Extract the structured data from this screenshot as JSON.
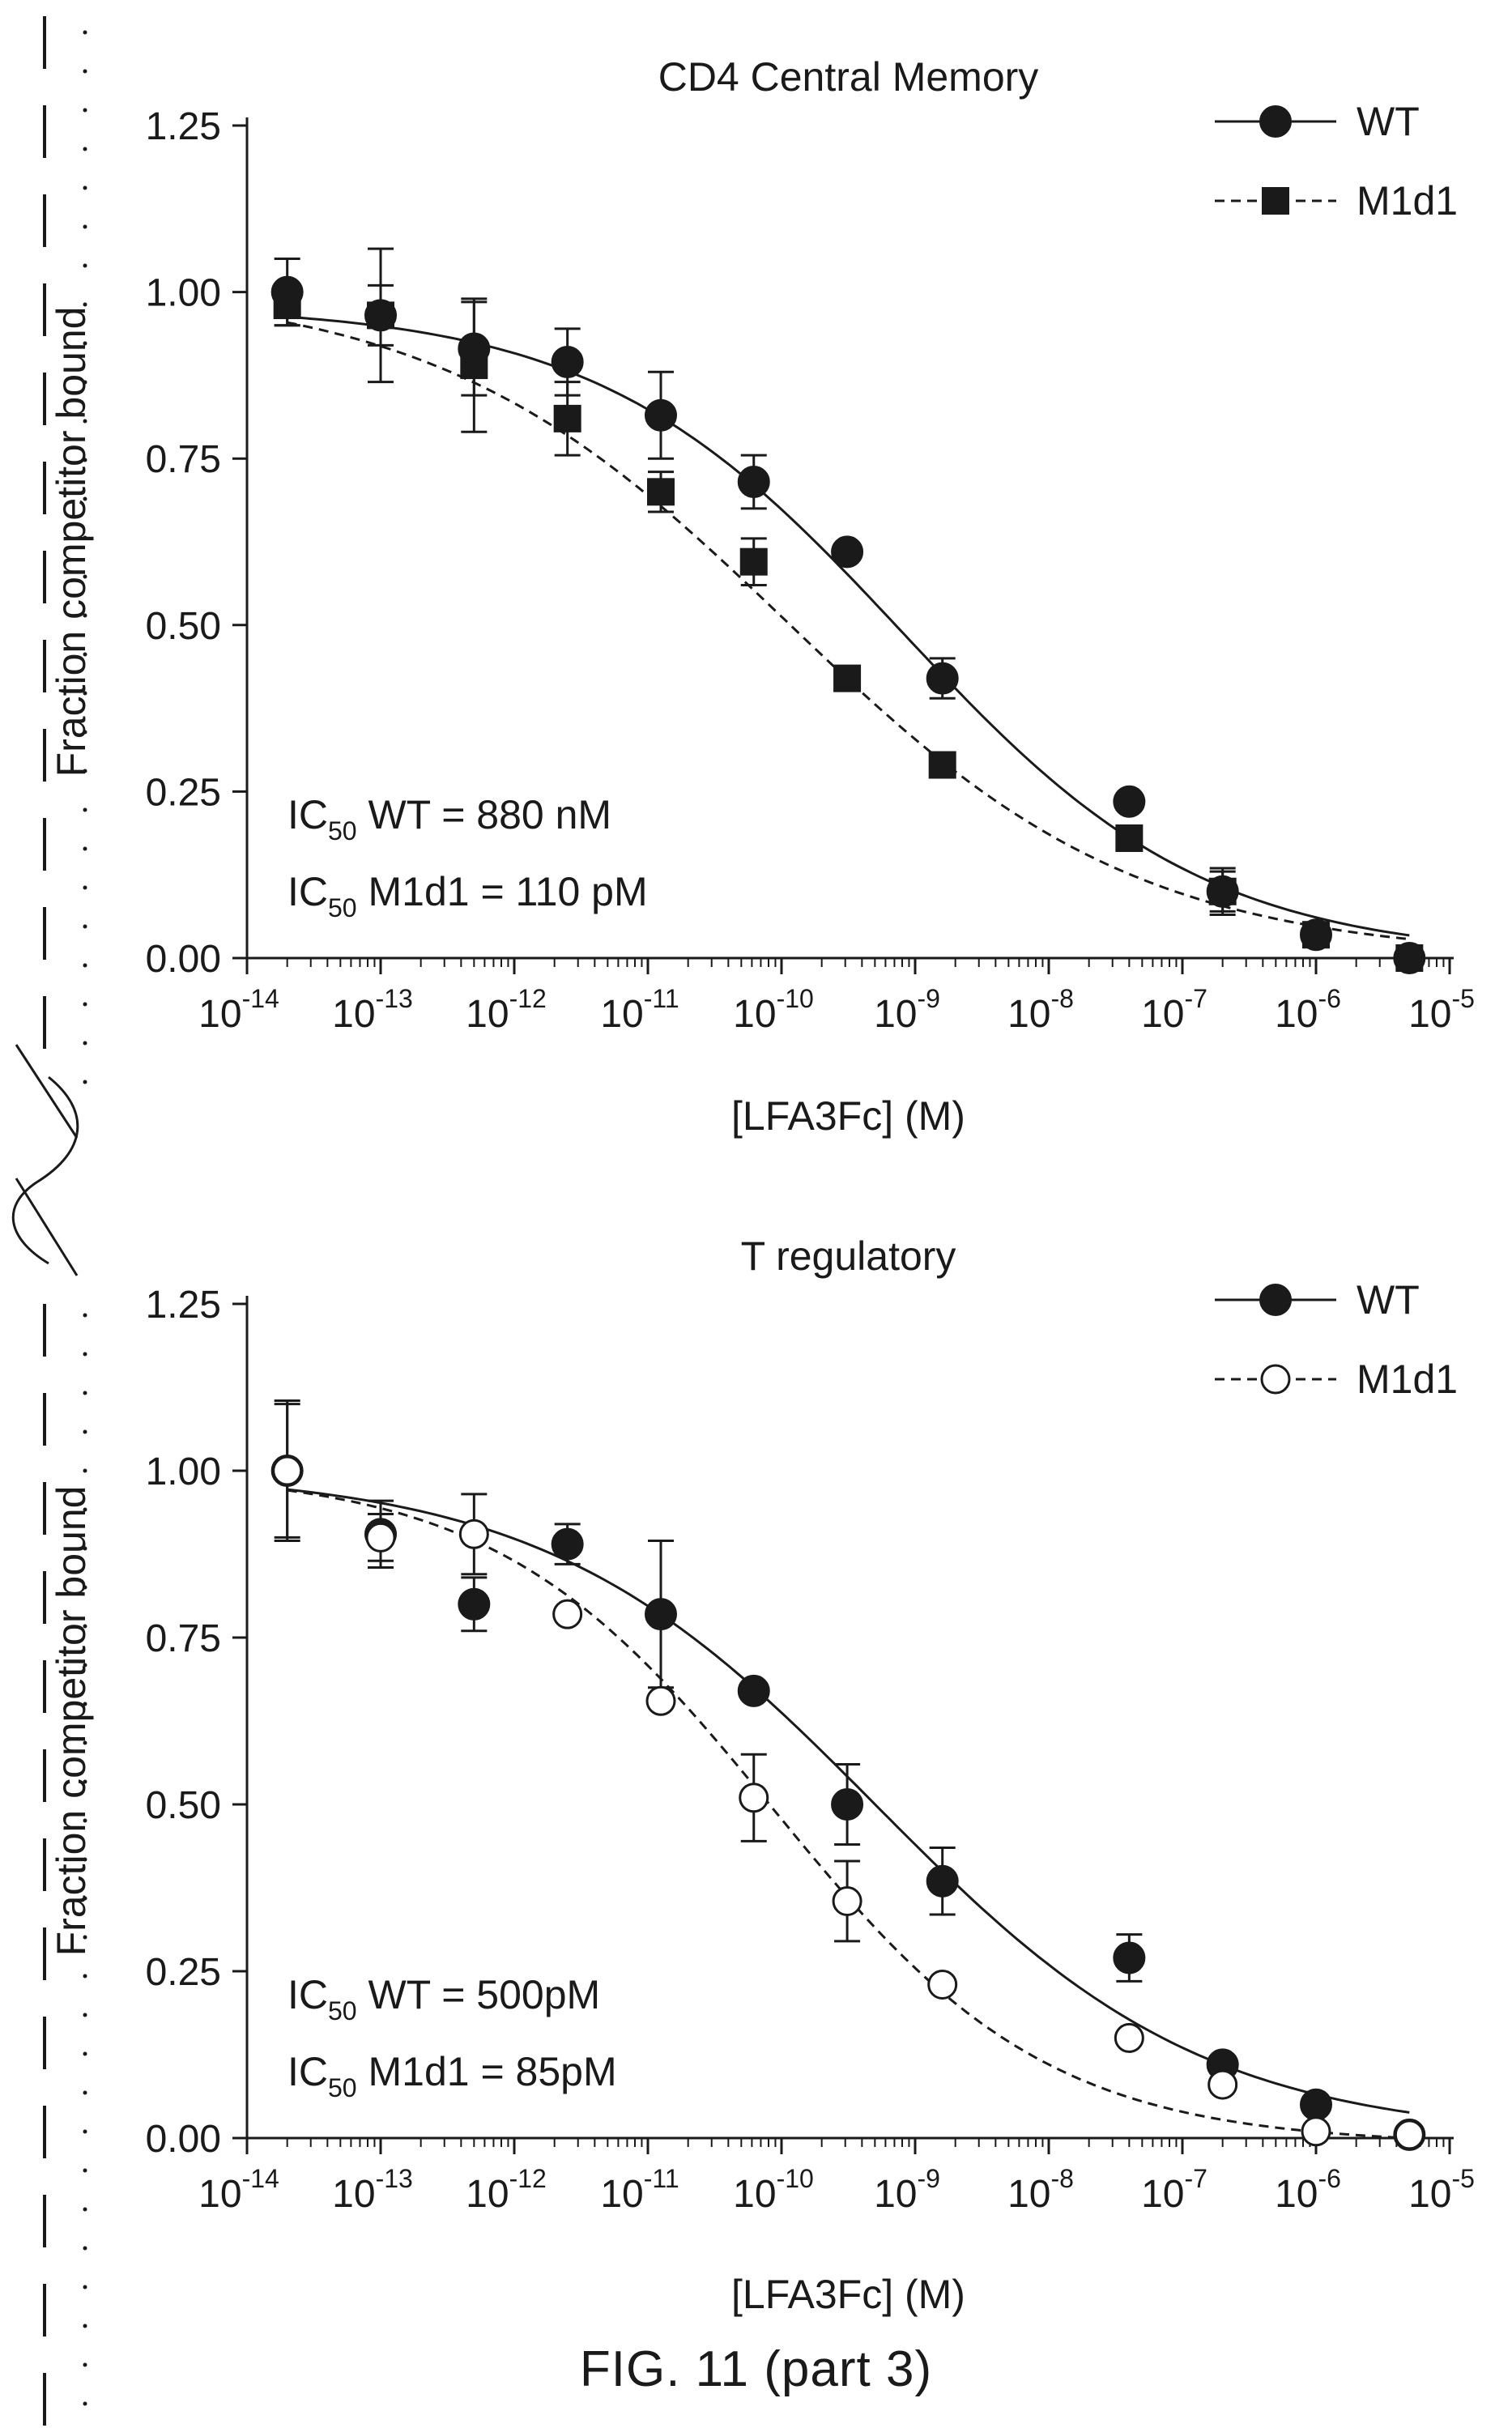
{
  "caption": "FIG. 11 (part 3)",
  "chart_data": [
    {
      "type": "scatter",
      "title": "CD4 Central Memory",
      "xlabel": "[LFA3Fc] (M)",
      "ylabel": "Fraction competitor bound",
      "xscale": "log",
      "xlim": [
        1e-14,
        1e-05
      ],
      "ylim": [
        0,
        1.25
      ],
      "x_ticks": [
        {
          "base": "10",
          "exp": "-14"
        },
        {
          "base": "10",
          "exp": "-13"
        },
        {
          "base": "10",
          "exp": "-12"
        },
        {
          "base": "10",
          "exp": "-11"
        },
        {
          "base": "10",
          "exp": "-10"
        },
        {
          "base": "10",
          "exp": "-9"
        },
        {
          "base": "10",
          "exp": "-8"
        },
        {
          "base": "10",
          "exp": "-7"
        },
        {
          "base": "10",
          "exp": "-6"
        },
        {
          "base": "10",
          "exp": "-5"
        }
      ],
      "y_ticks": [
        "0.00",
        "0.25",
        "0.50",
        "0.75",
        "1.00",
        "1.25"
      ],
      "legend_position": "top-right",
      "annotations": [
        {
          "pre": "IC",
          "sub": "50",
          "post": " WT    = 880 nM"
        },
        {
          "pre": "IC",
          "sub": "50",
          "post": " M1d1 = 110 pM"
        }
      ],
      "series": [
        {
          "name": "WT",
          "marker": "filled-circle",
          "line": "solid",
          "color": "#1a1a1a",
          "x": [
            2e-14,
            1e-13,
            5e-13,
            2.5e-12,
            1.25e-11,
            6.2e-11,
            3.1e-10,
            1.6e-09,
            4e-08,
            2e-07,
            1e-06,
            5e-06
          ],
          "y": [
            1.0,
            0.965,
            0.915,
            0.895,
            0.815,
            0.715,
            0.61,
            0.42,
            0.235,
            0.1,
            0.035,
            0.0
          ],
          "err": [
            0.05,
            0.1,
            0.07,
            0.05,
            0.065,
            0.04,
            0.0,
            0.03,
            0.0,
            0.035,
            0.0,
            0.0
          ],
          "fit": {
            "top": 0.98,
            "bottom": 0.0,
            "logIC50": -9.1,
            "hill": 0.38
          }
        },
        {
          "name": "M1d1",
          "marker": "filled-square",
          "line": "dashed",
          "color": "#1a1a1a",
          "x": [
            2e-14,
            1e-13,
            5e-13,
            2.5e-12,
            1.25e-11,
            6.2e-11,
            3.1e-10,
            1.6e-09,
            4e-08,
            2e-07,
            1e-06,
            5e-06
          ],
          "y": [
            0.98,
            0.965,
            0.89,
            0.81,
            0.7,
            0.595,
            0.42,
            0.29,
            0.18,
            0.1,
            0.035,
            0.0
          ],
          "err": [
            0.03,
            0.045,
            0.1,
            0.055,
            0.03,
            0.035,
            0.0,
            0.0,
            0.0,
            0.03,
            0.0,
            0.0
          ],
          "fit": {
            "top": 1.01,
            "bottom": 0.0,
            "logIC50": -9.96,
            "hill": 0.33
          }
        }
      ]
    },
    {
      "type": "scatter",
      "title": "T regulatory",
      "xlabel": "[LFA3Fc] (M)",
      "ylabel": "Fraction competitor bound",
      "xscale": "log",
      "xlim": [
        1e-14,
        1e-05
      ],
      "ylim": [
        0,
        1.25
      ],
      "x_ticks": [
        {
          "base": "10",
          "exp": "-14"
        },
        {
          "base": "10",
          "exp": "-13"
        },
        {
          "base": "10",
          "exp": "-12"
        },
        {
          "base": "10",
          "exp": "-11"
        },
        {
          "base": "10",
          "exp": "-10"
        },
        {
          "base": "10",
          "exp": "-9"
        },
        {
          "base": "10",
          "exp": "-8"
        },
        {
          "base": "10",
          "exp": "-7"
        },
        {
          "base": "10",
          "exp": "-6"
        },
        {
          "base": "10",
          "exp": "-5"
        }
      ],
      "y_ticks": [
        "0.00",
        "0.25",
        "0.50",
        "0.75",
        "1.00",
        "1.25"
      ],
      "legend_position": "top-right",
      "annotations": [
        {
          "pre": "IC",
          "sub": "50",
          "post": " WT    = 500pM"
        },
        {
          "pre": "IC",
          "sub": "50",
          "post": " M1d1 = 85pM"
        }
      ],
      "series": [
        {
          "name": "WT",
          "marker": "filled-circle",
          "line": "solid",
          "color": "#1a1a1a",
          "x": [
            2e-14,
            1e-13,
            5e-13,
            2.5e-12,
            1.25e-11,
            6.2e-11,
            3.1e-10,
            1.6e-09,
            4e-08,
            2e-07,
            1e-06,
            5e-06
          ],
          "y": [
            1.0,
            0.905,
            0.8,
            0.89,
            0.785,
            0.67,
            0.5,
            0.385,
            0.27,
            0.11,
            0.05,
            0.005
          ],
          "err": [
            0.105,
            0.05,
            0.04,
            0.03,
            0.11,
            0.0,
            0.06,
            0.05,
            0.035,
            0.0,
            0.0,
            0.0
          ],
          "fit": {
            "top": 1.0,
            "bottom": 0.0,
            "logIC50": -9.3,
            "hill": 0.35
          }
        },
        {
          "name": "M1d1",
          "marker": "open-circle",
          "line": "dashed",
          "color": "#1a1a1a",
          "x": [
            2e-14,
            1e-13,
            5e-13,
            2.5e-12,
            1.25e-11,
            6.2e-11,
            3.1e-10,
            1.6e-09,
            4e-08,
            2e-07,
            1e-06,
            5e-06
          ],
          "y": [
            1.0,
            0.9,
            0.905,
            0.785,
            0.655,
            0.51,
            0.355,
            0.23,
            0.15,
            0.08,
            0.01,
            0.005
          ],
          "err": [
            0.1,
            0.035,
            0.06,
            0.0,
            0.0,
            0.065,
            0.06,
            0.0,
            0.0,
            0.0,
            0.0,
            0.0
          ],
          "fit": {
            "top": 1.0,
            "bottom": -0.01,
            "logIC50": -10.07,
            "hill": 0.42
          }
        }
      ]
    }
  ]
}
